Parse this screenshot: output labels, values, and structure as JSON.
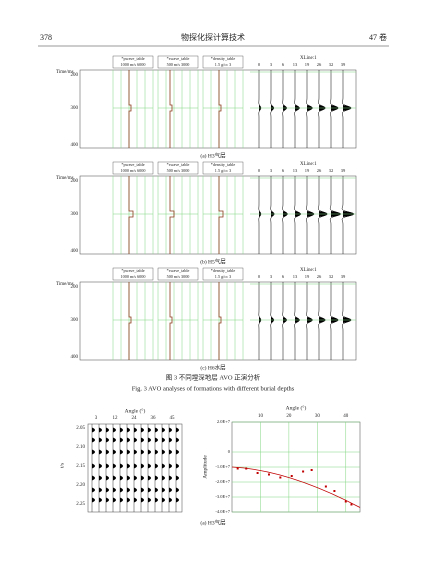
{
  "header": {
    "page": "378",
    "journal": "物探化探计算技术",
    "volume": "47 卷"
  },
  "panels": [
    {
      "tracks": [
        {
          "name": "*pwave_table",
          "scale": "1000  m/s  6000"
        },
        {
          "name": "*swave_table",
          "scale": "500  m/s  3000"
        },
        {
          "name": "*density_table",
          "scale": "1.5  g/cc  3"
        }
      ],
      "xline": "XLine:1",
      "offsets": [
        "0",
        "3",
        "6",
        "13",
        "19",
        "26",
        "32",
        "39"
      ],
      "time_label": "Time/ms",
      "times": [
        "200",
        "300",
        "400"
      ],
      "caption": "(a) H3气层"
    },
    {
      "tracks": [
        {
          "name": "*pwave_table",
          "scale": "1000  m/s  6000"
        },
        {
          "name": "*swave_table",
          "scale": "500  m/s  3000"
        },
        {
          "name": "*density_table",
          "scale": "1.5  g/cc  3"
        }
      ],
      "xline": "XLine:1",
      "offsets": [
        "0",
        "3",
        "6",
        "13",
        "19",
        "26",
        "32",
        "39"
      ],
      "time_label": "Time/ms",
      "times": [
        "200",
        "300",
        "400"
      ],
      "caption": "(b) H5气层"
    },
    {
      "tracks": [
        {
          "name": "*pwave_table",
          "scale": "1000  m/s  6000"
        },
        {
          "name": "*swave_table",
          "scale": "500  m/s  3000"
        },
        {
          "name": "*density_table",
          "scale": "1.5  g/cc  3"
        }
      ],
      "xline": "XLine:1",
      "offsets": [
        "0",
        "3",
        "6",
        "13",
        "19",
        "26",
        "32",
        "39"
      ],
      "time_label": "Time/ms",
      "times": [
        "200",
        "300",
        "400"
      ],
      "caption": "(c) H6水层"
    }
  ],
  "figure": {
    "caption_cn": "图 3   不同埋深地层 AVO 正演分析",
    "caption_en": "Fig. 3   AVO analyses of formations with different burial depths"
  },
  "gather": {
    "title": "Angle (°)",
    "angles": [
      "3",
      "12",
      "24",
      "36",
      "45"
    ],
    "ylabel": "t/s",
    "times": [
      "2.05",
      "2.10",
      "2.15",
      "2.20",
      "2.25"
    ]
  },
  "avo": {
    "title": "Angle (°)",
    "ylabel": "Amplitude",
    "xlim": [
      0,
      45
    ],
    "xticks": [
      10,
      20,
      30,
      40
    ],
    "ylim": [
      -40000000,
      20000000
    ],
    "yticks": [
      {
        "value": 20000000,
        "label": "2.0E+7"
      },
      0,
      {
        "value": -10000000,
        "label": "-1.0E+7"
      },
      {
        "value": -20000000,
        "label": "-2.0E+7"
      },
      {
        "value": -30000000,
        "label": "-3.0E+7"
      },
      {
        "value": -40000000,
        "label": "-4.0E+7"
      }
    ],
    "x": [
      2,
      5,
      9,
      13,
      17,
      21,
      25,
      28,
      33,
      36,
      40,
      42
    ],
    "values": [
      -11000000,
      -11000000,
      -14000000,
      -15000000,
      -17000000,
      -16000000,
      -13000000,
      -12000000,
      -23000000,
      -26000000,
      -33000000,
      -35000000
    ],
    "color": "#c00000"
  },
  "subcaption": "(a) H3气层"
}
